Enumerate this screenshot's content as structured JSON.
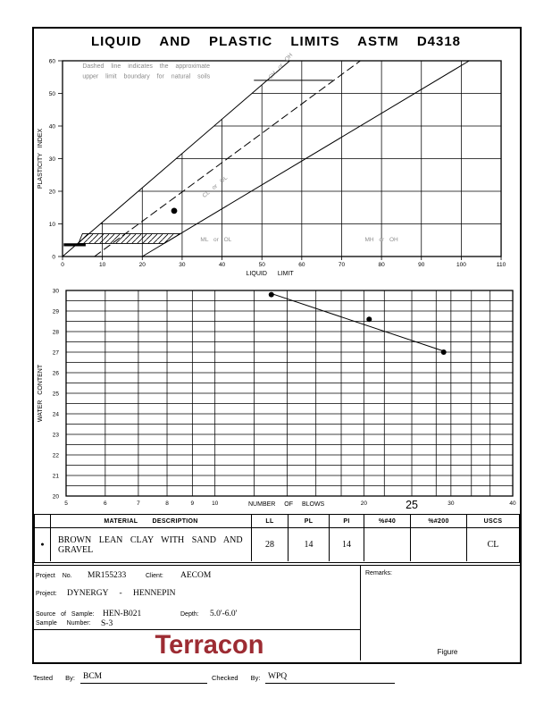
{
  "page": {
    "title": "LIQUID AND PLASTIC LIMITS ASTM D4318",
    "figure_label": "Figure",
    "tested_by_label": "Tested By:",
    "tested_by": "BCM",
    "checked_by_label": "Checked By:",
    "checked_by": "WPQ"
  },
  "chart_data": [
    {
      "type": "scatter",
      "title": "LIQUID AND PLASTIC LIMITS ASTM D4318",
      "xlabel": "LIQUID LIMIT",
      "ylabel": "PLASTICITY INDEX",
      "xlim": [
        0,
        110
      ],
      "ylim": [
        0,
        60
      ],
      "x_ticks": [
        0,
        10,
        20,
        30,
        40,
        50,
        60,
        70,
        80,
        90,
        100,
        110
      ],
      "y_ticks": [
        0,
        10,
        20,
        30,
        40,
        50,
        60
      ],
      "grid": "on",
      "points": [
        {
          "x": 28,
          "y": 14
        }
      ],
      "a_line": {
        "from": [
          20,
          0
        ],
        "to": [
          102,
          60
        ],
        "dashed": false
      },
      "u_line": {
        "from": [
          8,
          0
        ],
        "to": [
          74.7,
          60
        ],
        "dashed": true
      },
      "boundary_line": {
        "from": [
          0,
          0
        ],
        "to": [
          57,
          60
        ],
        "dashed": false
      },
      "grid_clip_polygon": [
        [
          0,
          0
        ],
        [
          57,
          60
        ],
        [
          110,
          60
        ],
        [
          110,
          0
        ]
      ],
      "note_line1": "Dashed line indicates the approximate",
      "note_line2": "upper limit boundary for natural soils",
      "note_pointer": {
        "from": [
          48,
          54
        ],
        "to": [
          67.8,
          54
        ]
      },
      "hatch_zone": [
        [
          4,
          4
        ],
        [
          25.5,
          4
        ],
        [
          29.6,
          7
        ],
        [
          5,
          7
        ]
      ],
      "heavy_bar": {
        "from": [
          0.3,
          3.6
        ],
        "to": [
          5.8,
          3.6
        ]
      },
      "zone_labels": [
        {
          "text": "ML or OL",
          "x": 38.5,
          "y": 4.6,
          "rotate": 0
        },
        {
          "text": "MH or OH",
          "x": 80,
          "y": 4.6,
          "rotate": 0
        },
        {
          "text": "CL or OL",
          "x": 38.5,
          "y": 21,
          "rotate": -40
        },
        {
          "text": "CH or OH",
          "x": 55,
          "y": 58,
          "rotate": -48
        }
      ]
    },
    {
      "type": "line",
      "xlabel": "NUMBER OF BLOWS",
      "ylabel": "WATER CONTENT",
      "xscale": "log",
      "xlim": [
        5,
        40
      ],
      "ylim": [
        20,
        30
      ],
      "x_gridlines": [
        5,
        6,
        7,
        8,
        9,
        10,
        12,
        14,
        16,
        18,
        20,
        22,
        25,
        28,
        30,
        33,
        36,
        40
      ],
      "x_tick_labels": [
        5,
        6,
        7,
        8,
        9,
        10,
        20,
        30,
        40
      ],
      "x_emphasis_label": 25,
      "y_tick_labels": [
        20,
        21,
        22,
        23,
        24,
        25,
        26,
        27,
        28,
        29,
        30
      ],
      "y_minor_step": 0.5,
      "points": [
        {
          "x": 13,
          "y": 29.8
        },
        {
          "x": 20.5,
          "y": 28.6
        },
        {
          "x": 29,
          "y": 27.0
        }
      ],
      "trend_line": {
        "from": [
          13,
          29.85
        ],
        "to": [
          29,
          27.05
        ]
      }
    }
  ],
  "results_table": {
    "headers": [
      "MATERIAL DESCRIPTION",
      "LL",
      "PL",
      "PI",
      "%#40",
      "%#200",
      "USCS"
    ],
    "row": {
      "marker": "●",
      "description": "BROWN LEAN CLAY WITH SAND AND GRAVEL",
      "ll": "28",
      "pl": "14",
      "pi": "14",
      "p40": "",
      "p200": "",
      "uscs": "CL"
    }
  },
  "project": {
    "project_no_label": "Project No.",
    "project_no": "MR155233",
    "client_label": "Client:",
    "client": "AECOM",
    "project_label": "Project:",
    "project_name": "DYNERGY - HENNEPIN",
    "source_label": "Source of Sample:",
    "source": "HEN-B021",
    "depth_label": "Depth:",
    "depth": "5.0'-6.0'",
    "sample_label": "Sample Number:",
    "sample": "S-3",
    "remarks_label": "Remarks:"
  },
  "logo": {
    "text": "Terracon",
    "color": "#9d2c33"
  }
}
